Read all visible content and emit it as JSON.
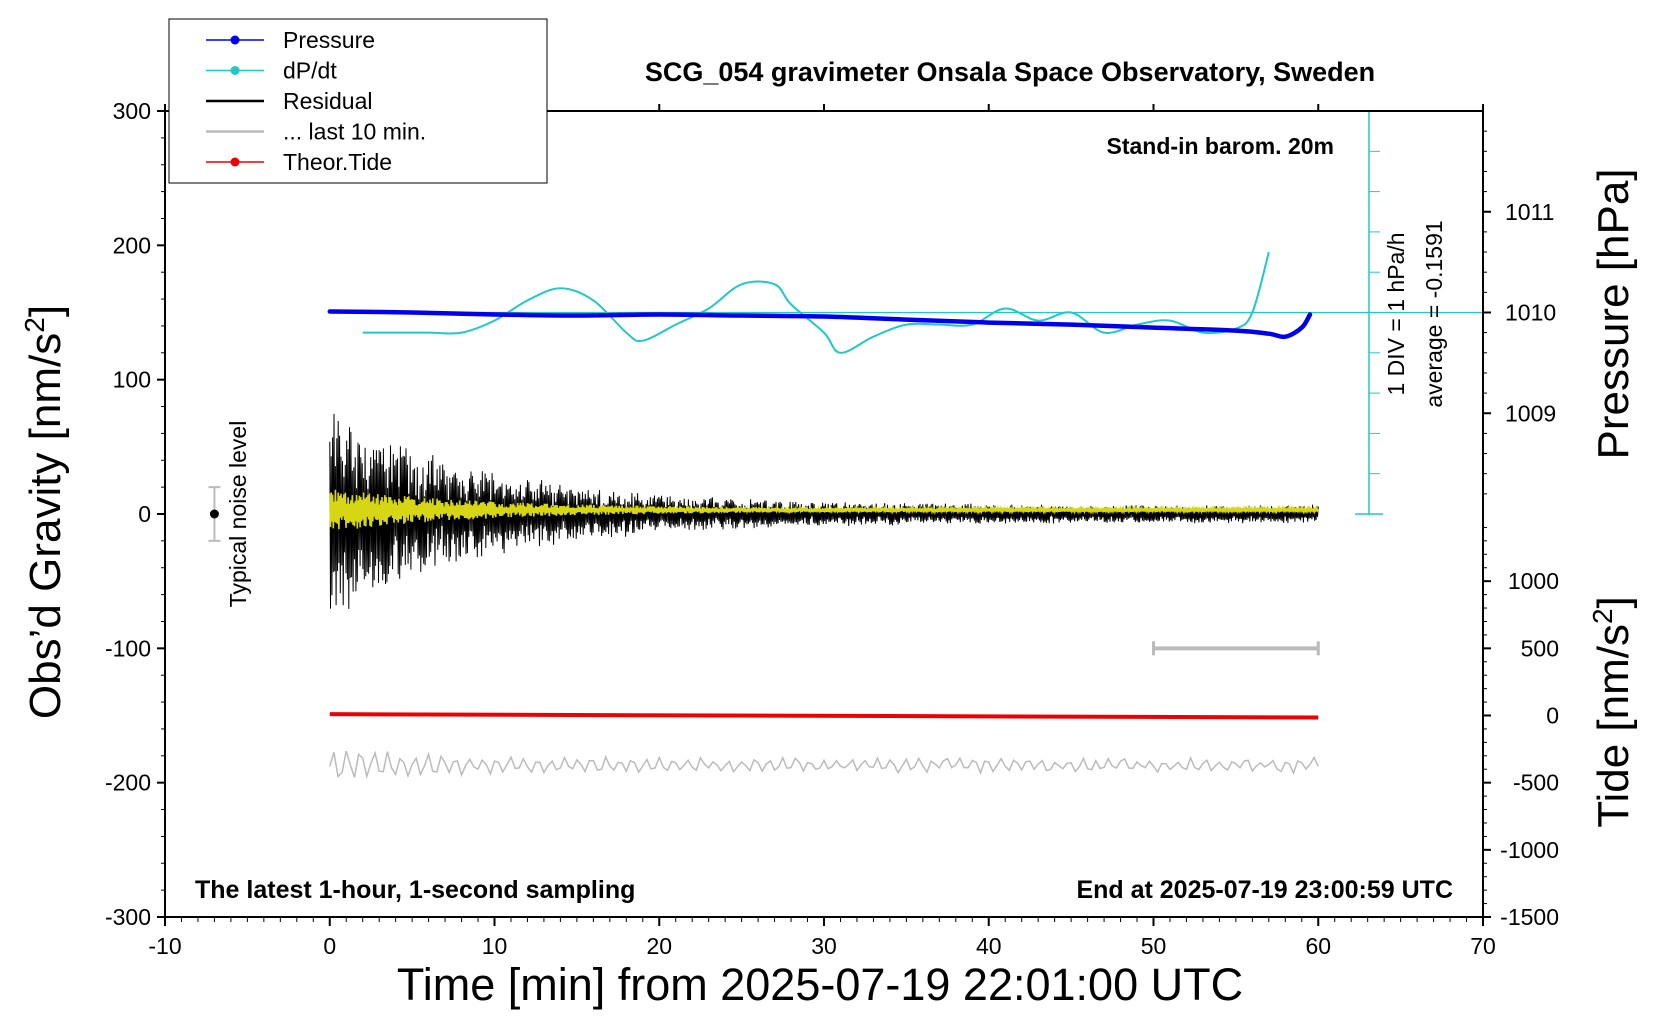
{
  "chart_data": {
    "type": "line",
    "title": "SCG_054 gravimeter Onsala Space Observatory, Sweden",
    "xlabel": "Time [min] from 2025-07-19 22:01:00 UTC",
    "xlim": [
      -10,
      70
    ],
    "x_ticks": [
      "-10",
      "0",
      "10",
      "20",
      "30",
      "40",
      "50",
      "60",
      "70"
    ],
    "left_axis": {
      "label_main": "Obs’d Gravity [nm/s",
      "label_sup": "2",
      "label_end": "]",
      "ylim": [
        -300,
        300
      ],
      "ticks": [
        "300",
        "200",
        "100",
        "0",
        "-100",
        "-200",
        "-300"
      ]
    },
    "pressure_axis": {
      "label": "Pressure [hPa]",
      "ylim": [
        1008,
        1012
      ],
      "ticks": [
        "1011",
        "1010",
        "1009"
      ]
    },
    "tide_axis": {
      "label_main": "Tide [nm/s",
      "label_sup": "2",
      "label_end": "]",
      "ylim": [
        -1500,
        1500
      ],
      "ticks": [
        "1000",
        "500",
        "0",
        "-500",
        "-1000",
        "-1500"
      ]
    },
    "dpdt_scale": {
      "label": "1 DIV = 1 hPa/h",
      "average": "average = -0.1591"
    },
    "annotations": {
      "top_right": "Stand-in barom. 20m",
      "bottom_left": "The latest 1-hour, 1-second sampling",
      "bottom_right": "End at 2025-07-19 23:00:59 UTC",
      "noise": "Typical noise level"
    },
    "legend": [
      {
        "name": "Pressure",
        "color": "#0000ee",
        "marker": true
      },
      {
        "name": "dP/dt",
        "color": "#20c8c8",
        "marker": true
      },
      {
        "name": "Residual",
        "color": "#000000",
        "marker": false
      },
      {
        "name": "... last 10 min.",
        "color": "#bbbbbb",
        "marker": false
      },
      {
        "name": "Theor.Tide",
        "color": "#ee0000",
        "marker": true
      }
    ],
    "series": [
      {
        "name": "Pressure",
        "unit": "hPa",
        "x": [
          0,
          5,
          10,
          15,
          20,
          25,
          30,
          35,
          40,
          45,
          50,
          55,
          57,
          58,
          59,
          59.5
        ],
        "values": [
          1010.01,
          1010.0,
          1009.98,
          1009.97,
          1009.98,
          1009.97,
          1009.96,
          1009.93,
          1009.9,
          1009.88,
          1009.85,
          1009.82,
          1009.79,
          1009.76,
          1009.85,
          1009.98
        ]
      },
      {
        "name": "dP/dt",
        "unit": "hPa/h",
        "x": [
          2,
          4,
          6,
          8,
          10,
          12,
          14,
          16,
          18,
          19,
          21,
          23,
          25,
          27,
          28,
          30,
          31,
          33,
          35,
          37,
          39,
          41,
          43,
          45,
          47,
          49,
          51,
          53,
          55,
          56,
          57
        ],
        "values": [
          -0.5,
          -0.5,
          -0.5,
          -0.5,
          -0.2,
          0.3,
          0.6,
          0.3,
          -0.5,
          -0.7,
          -0.3,
          0.1,
          0.7,
          0.7,
          0.2,
          -0.5,
          -1.0,
          -0.6,
          -0.3,
          -0.3,
          -0.3,
          0.1,
          -0.2,
          0.0,
          -0.5,
          -0.3,
          -0.2,
          -0.5,
          -0.4,
          0.0,
          1.5
        ]
      },
      {
        "name": "Theor.Tide",
        "unit": "nm/s2",
        "x": [
          0,
          60
        ],
        "values": [
          10,
          -15
        ]
      }
    ],
    "residual": {
      "x_start": 0,
      "x_end": 60,
      "initial_amplitude_nm_s2": 75,
      "final_amplitude_nm_s2": 6
    },
    "noise_level": {
      "x": -7,
      "y": 0,
      "half_range": 20
    },
    "last_10_min": {
      "x_start": 50,
      "x_end": 60
    }
  }
}
